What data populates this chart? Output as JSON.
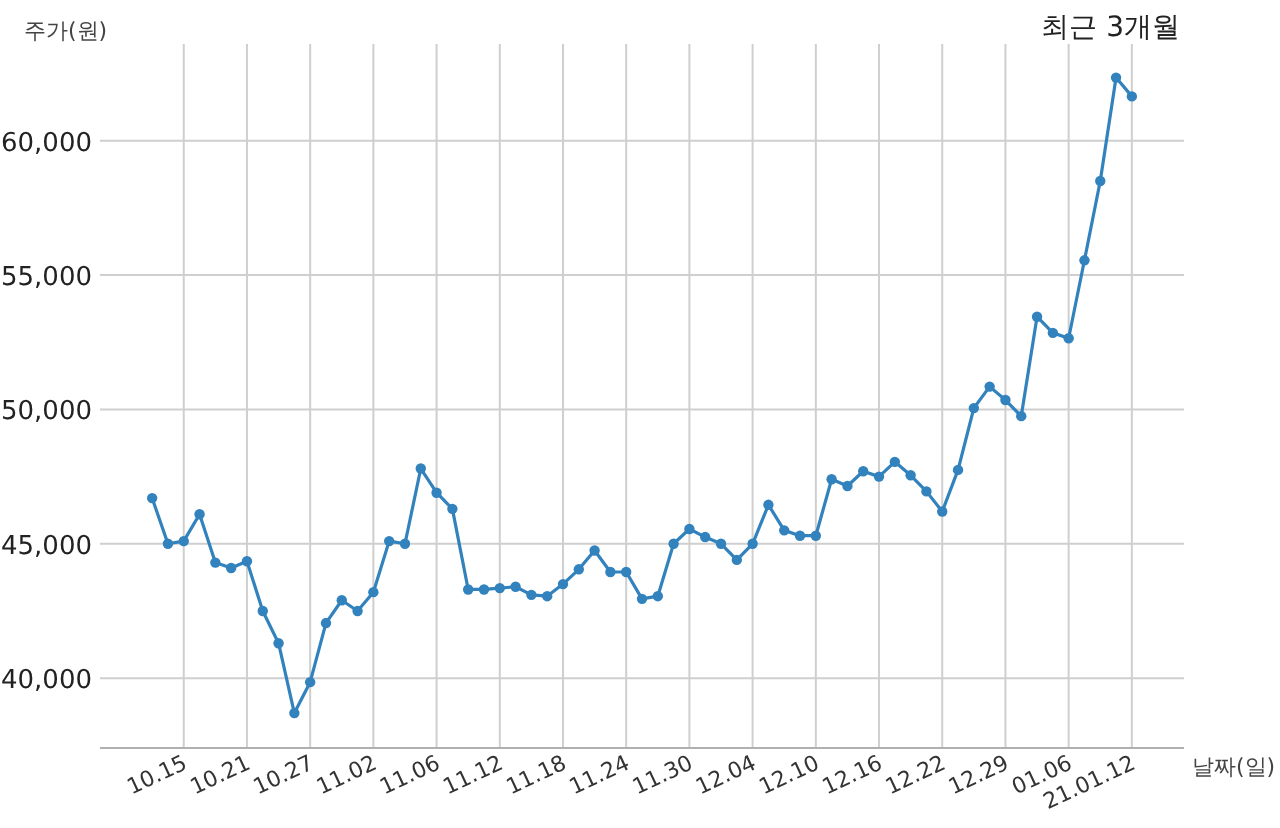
{
  "chart_data": {
    "type": "line",
    "title": "최근 3개월",
    "xlabel": "날짜(일)",
    "ylabel": "주가(원)",
    "categories": [
      null,
      null,
      "10.15",
      null,
      null,
      null,
      "10.21",
      null,
      null,
      null,
      "10.27",
      null,
      null,
      null,
      "11.02",
      null,
      null,
      null,
      "11.06",
      null,
      null,
      null,
      "11.12",
      null,
      null,
      null,
      "11.18",
      null,
      null,
      null,
      "11.24",
      null,
      null,
      null,
      "11.30",
      null,
      null,
      null,
      "12.04",
      null,
      null,
      null,
      "12.10",
      null,
      null,
      null,
      "12.16",
      null,
      null,
      null,
      "12.22",
      null,
      null,
      null,
      "12.29",
      null,
      null,
      null,
      "01.06",
      null,
      null,
      null,
      "21.01.12"
    ],
    "series": [
      {
        "color": "#3182bd",
        "values": [
          46700,
          45000,
          45100,
          46100,
          44300,
          44100,
          44350,
          42500,
          41300,
          38700,
          39850,
          42050,
          42900,
          42500,
          43200,
          45100,
          45000,
          47800,
          46900,
          46300,
          43300,
          43300,
          43350,
          43400,
          43100,
          43050,
          43500,
          44050,
          44750,
          43950,
          43950,
          42950,
          43050,
          45000,
          45550,
          45250,
          45000,
          44400,
          45000,
          46450,
          45500,
          45300,
          45300,
          47400,
          47150,
          47700,
          47500,
          48050,
          47550,
          46950,
          46200,
          47750,
          50050,
          50850,
          50350,
          49750,
          53450,
          52850,
          52650,
          55550,
          58500,
          62350,
          61650
        ]
      }
    ],
    "ylim": [
      37400,
      63600
    ],
    "yticks": [
      {
        "value": 40000,
        "label": "40,000"
      },
      {
        "value": 45000,
        "label": "45,000"
      },
      {
        "value": 50000,
        "label": "50,000"
      },
      {
        "value": 55000,
        "label": "55,000"
      },
      {
        "value": 60000,
        "label": "60,000"
      }
    ],
    "grid": true,
    "marker": "circle",
    "line_style": "solid"
  }
}
